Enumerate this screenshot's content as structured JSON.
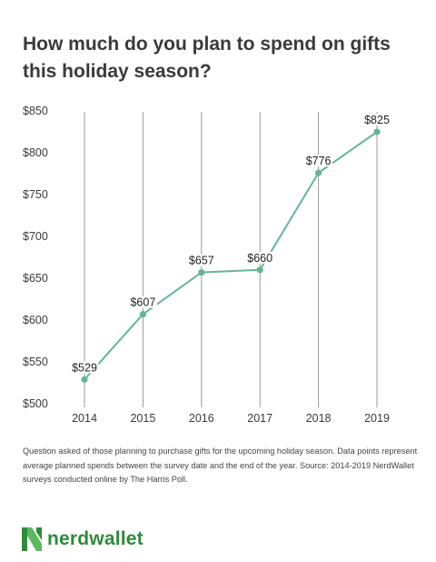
{
  "title": "How much do you plan to spend on gifts this holiday season?",
  "footnote": "Question asked of those planning to purchase gifts for the upcoming holiday season. Data points represent average planned spends between the survey date and the end of the year. Source: 2014-2019 NerdWallet surveys conducted online by The Harris Poll.",
  "brand": {
    "name": "nerdwallet",
    "mark": "N",
    "color": "#2f8a3c"
  },
  "colors": {
    "line": "#66b594",
    "grid": "#9a9a9a"
  },
  "chart_data": {
    "type": "line",
    "title": "How much do you plan to spend on gifts this holiday season?",
    "xlabel": "",
    "ylabel": "",
    "x": [
      "2014",
      "2015",
      "2016",
      "2017",
      "2018",
      "2019"
    ],
    "series": [
      {
        "values": [
          529,
          607,
          657,
          660,
          776,
          825
        ],
        "labels": [
          "$529",
          "$607",
          "$657",
          "$660",
          "$776",
          "$825"
        ]
      }
    ],
    "ylim": [
      500,
      850
    ],
    "yticks": [
      500,
      550,
      600,
      650,
      700,
      750,
      800,
      850
    ],
    "ytick_labels": [
      "$500",
      "$550",
      "$600",
      "$650",
      "$700",
      "$750",
      "$800",
      "$850"
    ],
    "grid": "vertical"
  }
}
